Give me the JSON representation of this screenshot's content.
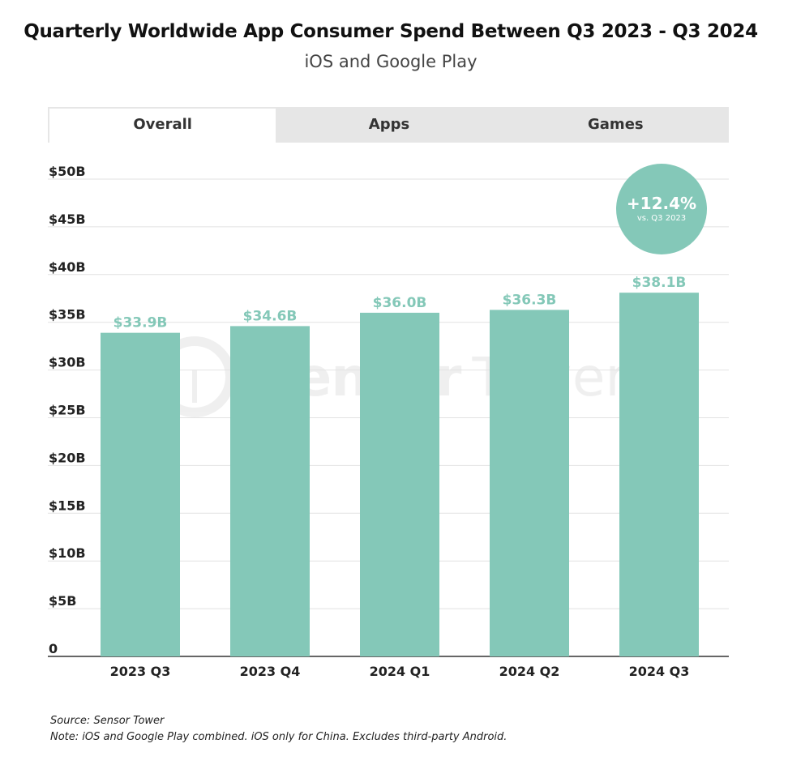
{
  "title": "Quarterly Worldwide App Consumer Spend Between Q3 2023 - Q3 2024",
  "subtitle": "iOS and Google Play",
  "tabs": [
    {
      "label": "Overall",
      "active": true
    },
    {
      "label": "Apps",
      "active": false
    },
    {
      "label": "Games",
      "active": false
    }
  ],
  "badge": {
    "value": "+12.4%",
    "subtext": "vs. Q3 2023",
    "color": "#84c8b8"
  },
  "watermark": {
    "text1": "Sensor",
    "text2": "Tower"
  },
  "footer": {
    "source": "Source: Sensor Tower",
    "note": "Note: iOS and Google Play combined. iOS only for China. Excludes third-party Android."
  },
  "colors": {
    "bar": "#84c8b8",
    "label": "#84c8b8",
    "grid": "#e2e2e2",
    "axis": "#333333"
  },
  "chart_data": {
    "type": "bar",
    "categories": [
      "2023 Q3",
      "2023 Q4",
      "2024 Q1",
      "2024 Q2",
      "2024 Q3"
    ],
    "values": [
      33.9,
      34.6,
      36.0,
      36.3,
      38.1
    ],
    "data_labels": [
      "$33.9B",
      "$34.6B",
      "$36.0B",
      "$36.3B",
      "$38.1B"
    ],
    "yticks": [
      0,
      5,
      10,
      15,
      20,
      25,
      30,
      35,
      40,
      45,
      50
    ],
    "ytick_labels": [
      "0",
      "$5B",
      "$10B",
      "$15B",
      "$20B",
      "$25B",
      "$30B",
      "$35B",
      "$40B",
      "$45B",
      "$50B"
    ],
    "ylim": [
      0,
      50
    ],
    "grid": true
  }
}
